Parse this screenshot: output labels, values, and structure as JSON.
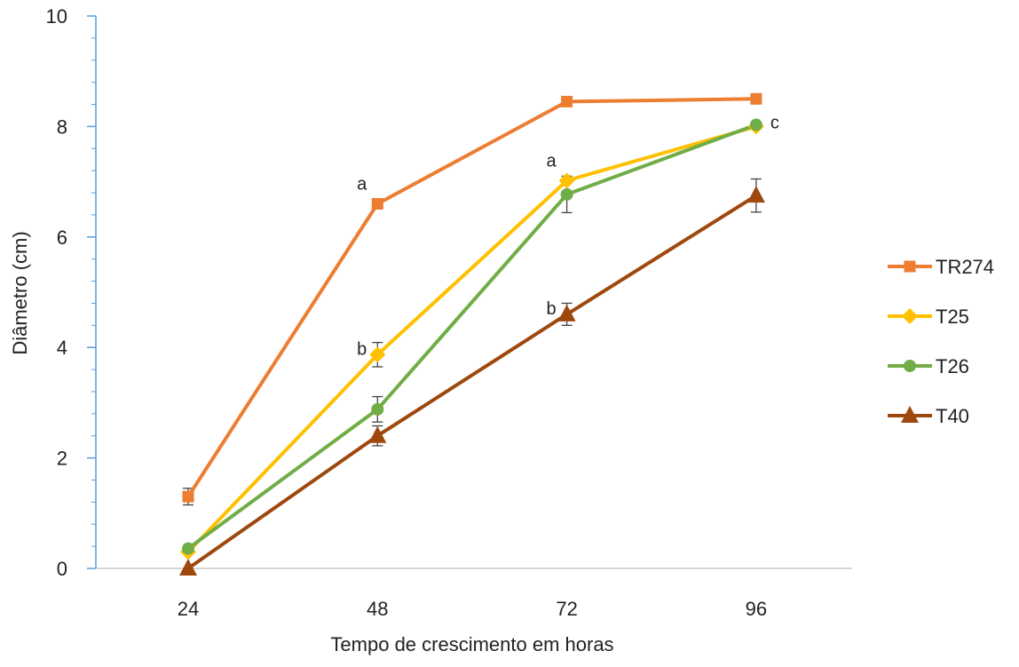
{
  "chart_data": {
    "type": "line",
    "title": "",
    "xlabel": "Tempo de crescimento em horas",
    "ylabel": "Diâmetro (cm)",
    "x": [
      "24",
      "48",
      "72",
      "96"
    ],
    "ylim": [
      0,
      10
    ],
    "yticks": [
      "0",
      "2",
      "4",
      "6",
      "8",
      "10"
    ],
    "grid": false,
    "legend_position": "right",
    "series": [
      {
        "name": "TR274",
        "color": "#ED7D31",
        "marker": "square",
        "values": [
          1.3,
          6.6,
          8.45,
          8.5
        ],
        "errors": [
          0.15,
          0,
          0,
          0
        ]
      },
      {
        "name": "T25",
        "color": "#FFC000",
        "marker": "diamond",
        "values": [
          0.3,
          3.87,
          7.02,
          8.0
        ],
        "errors": [
          0,
          0.22,
          0,
          0
        ]
      },
      {
        "name": "T26",
        "color": "#70AD47",
        "marker": "circle",
        "values": [
          0.36,
          2.88,
          6.77,
          8.03
        ],
        "errors": [
          0,
          0.23,
          0.33,
          0
        ]
      },
      {
        "name": "T40",
        "color": "#9E480E",
        "marker": "triangle",
        "values": [
          0.0,
          2.4,
          4.6,
          6.75
        ],
        "errors": [
          0,
          0.18,
          0.2,
          0.3
        ]
      }
    ],
    "annotations": [
      {
        "text": "a",
        "x": "48",
        "y": 6.6,
        "series": "TR274"
      },
      {
        "text": "b",
        "x": "48",
        "y": 3.87,
        "series": "T25"
      },
      {
        "text": "a",
        "x": "72",
        "y": 7.02,
        "series": "T25"
      },
      {
        "text": "b",
        "x": "72",
        "y": 4.6,
        "series": "T40"
      },
      {
        "text": "c",
        "x": "96",
        "y": 8.03,
        "series": "T26"
      }
    ]
  }
}
